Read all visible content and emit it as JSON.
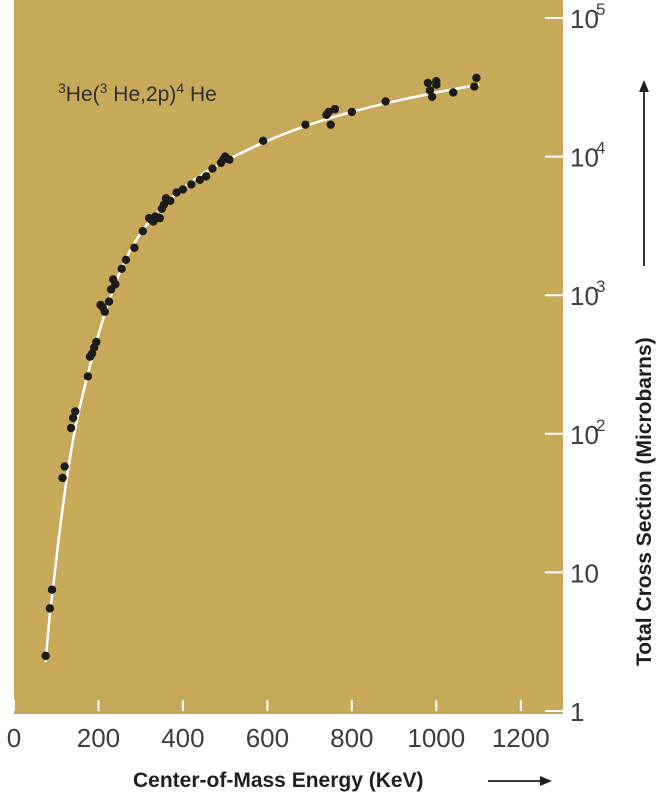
{
  "chart_data": {
    "type": "scatter",
    "title_parts": [
      {
        "text": "3",
        "sup": true
      },
      {
        "text": "He(",
        "sup": false
      },
      {
        "text": "3",
        "sup": true
      },
      {
        "text": " He,2p)",
        "sup": false
      },
      {
        "text": "4",
        "sup": true
      },
      {
        "text": " He",
        "sup": false
      }
    ],
    "xlabel": "Center-of-Mass Energy (KeV)",
    "ylabel": "Total Cross Section (Microbarns)",
    "xlim": [
      0,
      1300
    ],
    "ylim": [
      1,
      100000
    ],
    "yscale": "log",
    "grid": false,
    "x_ticks": [
      0,
      200,
      400,
      600,
      800,
      1000,
      1200
    ],
    "x_tick_labels": [
      "0",
      "200",
      "400",
      "600",
      "800",
      "1000",
      "1200"
    ],
    "y_ticks": [
      {
        "value": 1,
        "base": "1",
        "exp": ""
      },
      {
        "value": 10,
        "base": "10",
        "exp": ""
      },
      {
        "value": 100,
        "base": "10",
        "exp": "2"
      },
      {
        "value": 1000,
        "base": "10",
        "exp": "3"
      },
      {
        "value": 10000,
        "base": "10",
        "exp": "4"
      },
      {
        "value": 100000,
        "base": "10",
        "exp": "5"
      }
    ],
    "colors": {
      "background": "#c8a95a",
      "curve": "#ffffff",
      "points": "#1b1b1b"
    },
    "series": [
      {
        "kind": "points",
        "x": [
          75,
          85,
          90,
          115,
          120,
          135,
          140,
          145,
          175,
          180,
          185,
          190,
          195,
          205,
          210,
          215,
          225,
          230,
          235,
          240,
          255,
          265,
          285,
          305,
          320,
          325,
          330,
          335,
          345,
          350,
          355,
          360,
          370,
          385,
          400,
          420,
          440,
          455,
          470,
          490,
          495,
          500,
          510,
          590,
          690,
          740,
          745,
          750,
          760,
          800,
          880,
          980,
          985,
          990,
          1000,
          1000,
          1040,
          1090,
          1095
        ],
        "y": [
          2.5,
          5.5,
          7.5,
          48,
          58,
          110,
          130,
          145,
          260,
          360,
          380,
          420,
          460,
          850,
          820,
          760,
          900,
          1100,
          1300,
          1200,
          1550,
          1800,
          2200,
          2900,
          3600,
          3500,
          3400,
          3700,
          3600,
          4200,
          4500,
          5000,
          4800,
          5500,
          5800,
          6300,
          6800,
          7200,
          8200,
          9000,
          9500,
          10000,
          9500,
          13000,
          17000,
          20000,
          21000,
          17000,
          22000,
          21000,
          25000,
          34000,
          30000,
          27000,
          33000,
          35000,
          29000,
          32000,
          37000
        ]
      },
      {
        "kind": "curve",
        "x": [
          75,
          85,
          95,
          110,
          130,
          150,
          175,
          200,
          230,
          260,
          300,
          350,
          400,
          450,
          500,
          600,
          700,
          800,
          900,
          1000,
          1100
        ],
        "y": [
          2.3,
          5,
          9,
          22,
          60,
          130,
          270,
          520,
          1000,
          1700,
          2800,
          4300,
          5900,
          7600,
          9300,
          13000,
          17000,
          21000,
          25000,
          29000,
          33000
        ]
      }
    ]
  }
}
